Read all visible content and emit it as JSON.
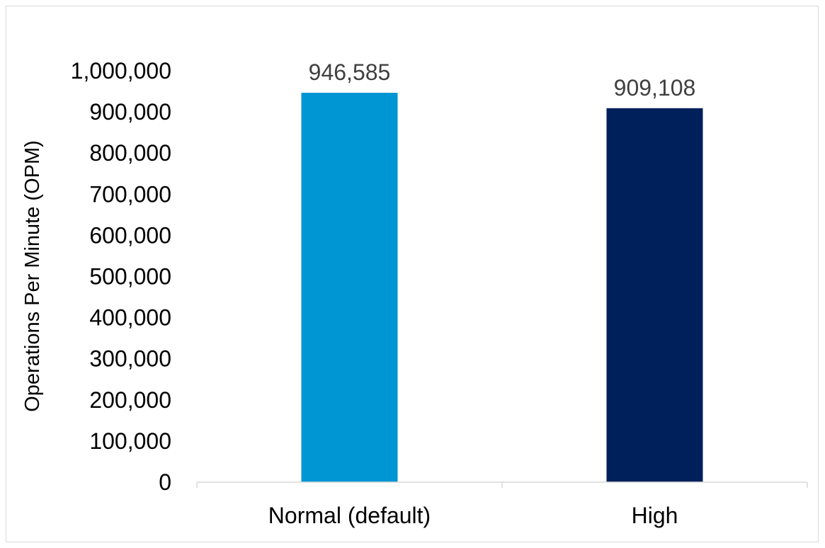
{
  "chart_data": {
    "type": "bar",
    "categories": [
      "Normal (default)",
      "High"
    ],
    "values": [
      946585,
      909108
    ],
    "data_labels": [
      "946,585",
      "909,108"
    ],
    "colors": [
      "#0095d3",
      "#00205b"
    ],
    "title": "",
    "xlabel": "",
    "ylabel": "Operations Per Minute (OPM)",
    "ylim": [
      0,
      1000000
    ],
    "yticks": [
      0,
      100000,
      200000,
      300000,
      400000,
      500000,
      600000,
      700000,
      800000,
      900000,
      1000000
    ],
    "ytick_labels": [
      "0",
      "100,000",
      "200,000",
      "300,000",
      "400,000",
      "500,000",
      "600,000",
      "700,000",
      "800,000",
      "900,000",
      "1,000,000"
    ],
    "grid": false,
    "legend": "none"
  }
}
